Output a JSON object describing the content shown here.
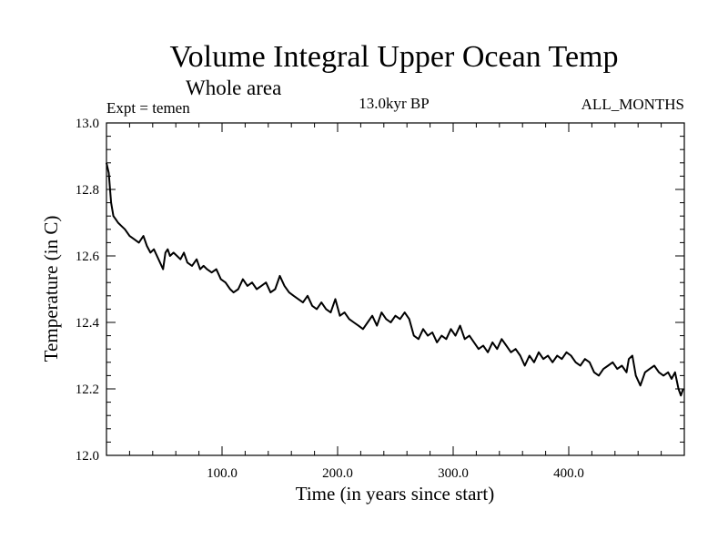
{
  "chart_data": {
    "type": "line",
    "title": "Volume Integral Upper Ocean Temp",
    "subtitle": "Whole area",
    "expt_label": "Expt = temen",
    "period_label": "13.0kyr BP",
    "months_label": "ALL_MONTHS",
    "xlabel": "Time (in years since start)",
    "ylabel": "Temperature (in C)",
    "xlim": [
      0,
      500
    ],
    "ylim": [
      12.0,
      13.0
    ],
    "x_ticks": [
      100,
      200,
      300,
      400
    ],
    "x_tick_labels": [
      "100.0",
      "200.0",
      "300.0",
      "400.0"
    ],
    "y_ticks": [
      12.0,
      12.2,
      12.4,
      12.6,
      12.8,
      13.0
    ],
    "y_tick_labels": [
      "12.0",
      "12.2",
      "12.4",
      "12.6",
      "12.8",
      "13.0"
    ],
    "x_minor_step": 20,
    "y_minor_step": 0.04,
    "grid": false,
    "series": [
      {
        "name": "temen",
        "x": [
          0,
          2,
          4,
          6,
          8,
          10,
          13,
          16,
          20,
          24,
          28,
          32,
          35,
          38,
          41,
          45,
          49,
          51,
          53,
          55,
          58,
          61,
          64,
          67,
          70,
          74,
          78,
          81,
          84,
          87,
          91,
          95,
          99,
          103,
          107,
          110,
          114,
          118,
          122,
          126,
          130,
          134,
          138,
          142,
          146,
          150,
          154,
          158,
          162,
          166,
          170,
          174,
          178,
          182,
          186,
          190,
          194,
          198,
          202,
          206,
          210,
          214,
          218,
          222,
          226,
          230,
          234,
          238,
          242,
          246,
          250,
          254,
          258,
          262,
          266,
          270,
          274,
          278,
          282,
          286,
          290,
          294,
          298,
          302,
          306,
          310,
          314,
          318,
          322,
          326,
          330,
          334,
          338,
          342,
          346,
          350,
          354,
          358,
          362,
          366,
          370,
          374,
          378,
          382,
          386,
          390,
          394,
          398,
          402,
          406,
          410,
          414,
          418,
          422,
          426,
          430,
          434,
          438,
          442,
          446,
          450,
          452,
          455,
          458,
          462,
          466,
          470,
          474,
          478,
          482,
          486,
          489,
          492,
          495,
          497,
          499
        ],
        "y": [
          12.88,
          12.85,
          12.76,
          12.72,
          12.71,
          12.7,
          12.69,
          12.68,
          12.66,
          12.65,
          12.64,
          12.66,
          12.63,
          12.61,
          12.62,
          12.59,
          12.56,
          12.61,
          12.62,
          12.6,
          12.61,
          12.6,
          12.59,
          12.61,
          12.58,
          12.57,
          12.59,
          12.56,
          12.57,
          12.56,
          12.55,
          12.56,
          12.53,
          12.52,
          12.5,
          12.49,
          12.5,
          12.53,
          12.51,
          12.52,
          12.5,
          12.51,
          12.52,
          12.49,
          12.5,
          12.54,
          12.51,
          12.49,
          12.48,
          12.47,
          12.46,
          12.48,
          12.45,
          12.44,
          12.46,
          12.44,
          12.43,
          12.47,
          12.42,
          12.43,
          12.41,
          12.4,
          12.39,
          12.38,
          12.4,
          12.42,
          12.39,
          12.43,
          12.41,
          12.4,
          12.42,
          12.41,
          12.43,
          12.41,
          12.36,
          12.35,
          12.38,
          12.36,
          12.37,
          12.34,
          12.36,
          12.35,
          12.38,
          12.36,
          12.39,
          12.35,
          12.36,
          12.34,
          12.32,
          12.33,
          12.31,
          12.34,
          12.32,
          12.35,
          12.33,
          12.31,
          12.32,
          12.3,
          12.27,
          12.3,
          12.28,
          12.31,
          12.29,
          12.3,
          12.28,
          12.3,
          12.29,
          12.31,
          12.3,
          12.28,
          12.27,
          12.29,
          12.28,
          12.25,
          12.24,
          12.26,
          12.27,
          12.28,
          12.26,
          12.27,
          12.25,
          12.29,
          12.3,
          12.24,
          12.21,
          12.25,
          12.26,
          12.27,
          12.25,
          12.24,
          12.25,
          12.23,
          12.25,
          12.2,
          12.18,
          12.2
        ]
      }
    ]
  }
}
